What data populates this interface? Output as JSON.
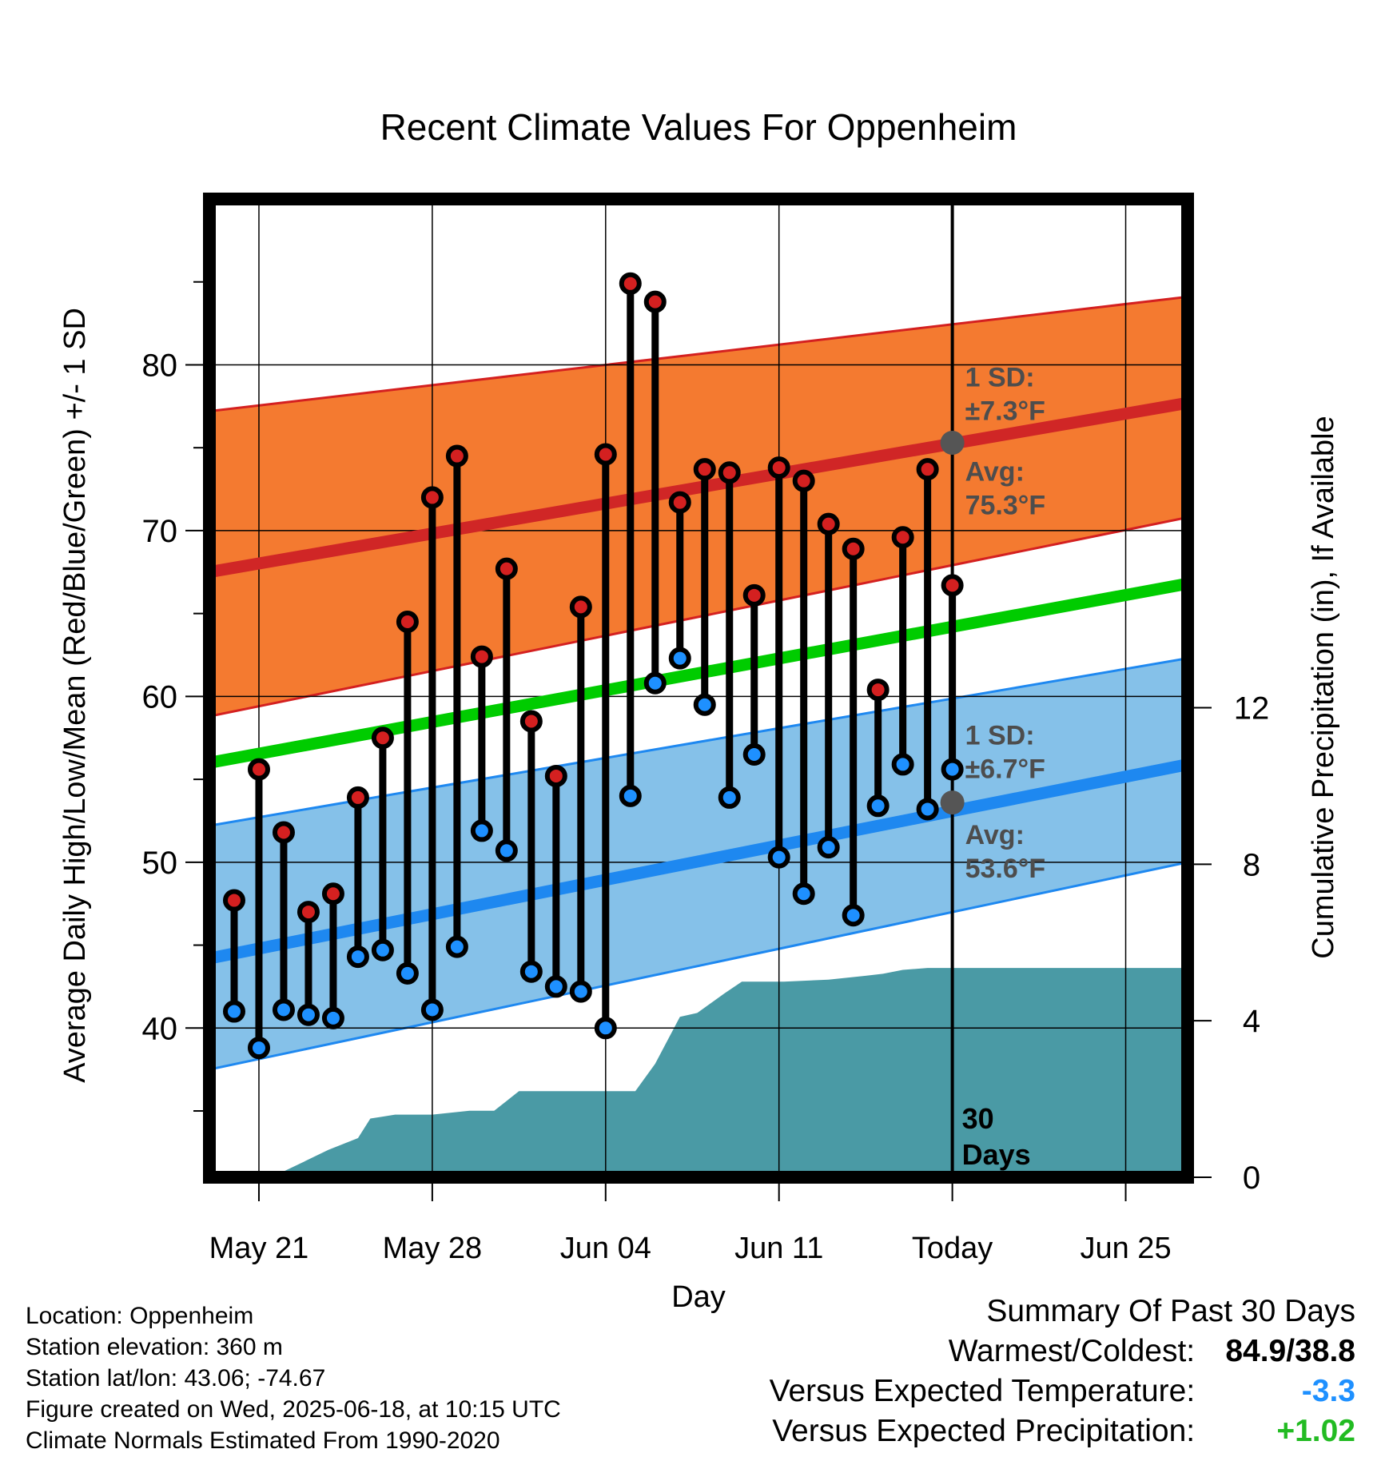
{
  "chart_data": {
    "type": "line",
    "title": "Recent Climate Values For Oppenheim",
    "xlabel": "Day",
    "ylabel": "Average Daily High/Low/Mean (Red/Blue/Green) +/- 1 SD",
    "y2label": "Cumulative Precipitation (in), If Available",
    "x_tick_labels": [
      "May 21",
      "May 28",
      "Jun 04",
      "Jun 11",
      "Today",
      "Jun 25"
    ],
    "y_ticks": [
      40,
      50,
      60,
      70,
      80
    ],
    "y2_ticks": [
      0,
      4,
      8,
      12
    ],
    "ylim": [
      31,
      90
    ],
    "y2lim": [
      0,
      25
    ],
    "x_day_range": [
      -30,
      9.5
    ],
    "grid": true,
    "colors": {
      "high_band": "#f47a30",
      "high_band_edge": "#d42020",
      "high_avg": "#d02626",
      "low_band": "#85c1e9",
      "low_band_edge": "#1e88f0",
      "low_avg": "#1e88f0",
      "mean": "#00cc00",
      "precip": "#4a9aa5",
      "high_marker": "#d42020",
      "low_marker": "#1e90ff",
      "annotation": "#4d4d4d"
    },
    "normals": {
      "high_avg": {
        "start": 67.5,
        "end": 77.7
      },
      "high_upper": {
        "start": 77.2,
        "end": 84.1
      },
      "high_lower": {
        "start": 58.8,
        "end": 70.8
      },
      "mean": {
        "start": 56.0,
        "end": 66.8
      },
      "low_avg": {
        "start": 44.2,
        "end": 55.9
      },
      "low_upper": {
        "start": 52.2,
        "end": 62.3
      },
      "low_lower": {
        "start": 37.5,
        "end": 50.0
      }
    },
    "today_annotations": {
      "high_sd": [
        "1 SD:",
        "±7.3°F"
      ],
      "high_avg": [
        "Avg:",
        "75.3°F"
      ],
      "low_sd": [
        "1 SD:",
        "±6.7°F"
      ],
      "low_avg": [
        "Avg:",
        "53.6°F"
      ],
      "high_avg_value": 75.3,
      "low_avg_value": 53.6
    },
    "window_label": [
      "30",
      "Days"
    ],
    "series": [
      {
        "name": "High",
        "values": [
          47.7,
          55.6,
          51.8,
          47.0,
          48.1,
          53.9,
          57.5,
          64.5,
          72.0,
          74.5,
          62.4,
          67.7,
          58.5,
          55.2,
          65.4,
          74.6,
          84.9,
          83.8,
          71.7,
          73.7,
          73.5,
          66.1,
          73.8,
          73.0,
          70.4,
          68.9,
          60.4,
          69.6,
          73.7,
          66.7
        ]
      },
      {
        "name": "Low",
        "values": [
          41.0,
          38.8,
          41.1,
          40.8,
          40.6,
          44.3,
          44.7,
          43.3,
          41.1,
          44.9,
          51.9,
          50.7,
          43.4,
          42.5,
          42.2,
          40.0,
          54.0,
          60.8,
          62.3,
          59.5,
          53.9,
          56.5,
          50.3,
          48.1,
          50.9,
          46.8,
          53.4,
          55.9,
          53.2,
          55.6
        ]
      }
    ],
    "x_days": [
      -29,
      -28,
      -27,
      -26,
      -25,
      -24,
      -23,
      -22,
      -21,
      -20,
      -19,
      -18,
      -17,
      -16,
      -15,
      -14,
      -13,
      -12,
      -11,
      -10,
      -9,
      -8,
      -7,
      -6,
      -5,
      -4,
      -3,
      -2,
      -1,
      0
    ],
    "precip_cumulative": {
      "x": [
        -30,
        -27.5,
        -26.5,
        -25.2,
        -24,
        -23.5,
        -22.5,
        -21,
        -19.5,
        -18.5,
        -17.5,
        -17,
        -15,
        -13,
        -12.8,
        -12,
        -11,
        -10.3,
        -9.2,
        -8.5,
        -7.3,
        -6.8,
        -5,
        -3.5,
        -2.8,
        -2,
        -1,
        0,
        9.5
      ],
      "y": [
        0,
        0,
        0.3,
        0.7,
        1.0,
        1.5,
        1.6,
        1.6,
        1.7,
        1.7,
        2.2,
        2.2,
        2.2,
        2.2,
        2.2,
        2.9,
        4.1,
        4.2,
        4.7,
        5.0,
        5.0,
        5.0,
        5.05,
        5.15,
        5.2,
        5.3,
        5.35,
        5.35,
        5.35
      ]
    }
  },
  "footer": {
    "location": "Location: Oppenheim",
    "elevation": "Station elevation: 360 m",
    "latlon": "Station lat/lon: 43.06; -74.67",
    "created": "Figure created on Wed, 2025-06-18, at 10:15 UTC",
    "normals": "Climate Normals Estimated From 1990-2020"
  },
  "summary": {
    "heading": "Summary Of Past 30 Days",
    "warmest_label": "Warmest/Coldest:",
    "warmest_value": "84.9/38.8",
    "temp_label": "Versus Expected Temperature:",
    "temp_value": "-3.3",
    "temp_color": "#1e90ff",
    "precip_label": "Versus Expected Precipitation:",
    "precip_value": "+1.02",
    "precip_color": "#22bb22"
  }
}
